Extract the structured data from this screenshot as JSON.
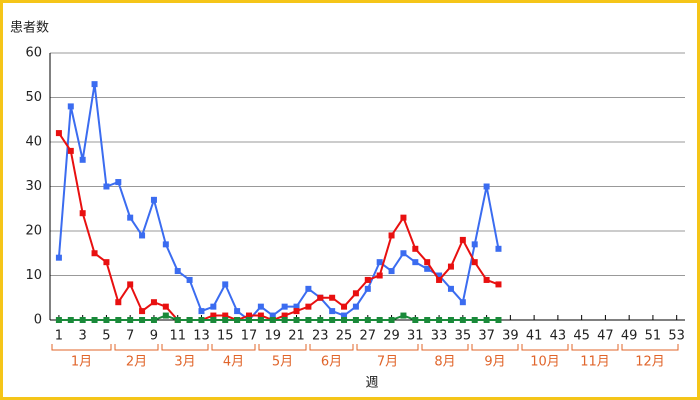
{
  "chart_data": {
    "type": "line",
    "y_label": "患者数",
    "x_label": "週",
    "x": [
      1,
      2,
      3,
      4,
      5,
      6,
      7,
      8,
      9,
      10,
      11,
      12,
      13,
      14,
      15,
      16,
      17,
      18,
      19,
      20,
      21,
      22,
      23,
      24,
      25,
      26,
      27,
      28,
      29,
      30,
      31,
      32,
      33,
      34,
      35,
      36,
      37,
      38
    ],
    "series": [
      {
        "color": "#3b6cf0",
        "values": [
          14,
          48,
          36,
          53,
          30,
          31,
          23,
          19,
          27,
          17,
          11,
          9,
          2,
          3,
          8,
          2,
          0,
          3,
          1,
          3,
          3,
          7,
          5,
          2,
          1,
          3,
          7,
          13,
          11,
          15,
          13,
          11.5,
          10,
          7,
          4,
          17,
          30,
          16
        ]
      },
      {
        "color": "#e81010",
        "values": [
          42,
          38,
          24,
          15,
          13,
          4,
          8,
          2,
          4,
          3,
          0,
          0,
          0,
          1,
          1,
          0,
          1,
          1,
          0,
          1,
          2,
          3,
          5,
          5,
          3,
          6,
          9,
          10,
          19,
          23,
          16,
          13,
          9,
          12,
          18,
          13,
          9,
          8
        ]
      },
      {
        "color": "#1a8a3a",
        "values": [
          0,
          0,
          0,
          0,
          0,
          0,
          0,
          0,
          0,
          1,
          0,
          0,
          0,
          0,
          0,
          0,
          0,
          0,
          0,
          0,
          0,
          0,
          0,
          0,
          0,
          0,
          0,
          0,
          0,
          1,
          0,
          0,
          0,
          0,
          0,
          0,
          0,
          0
        ]
      }
    ],
    "xlim": [
      0.25,
      53.7
    ],
    "xticks": [
      1,
      3,
      5,
      7,
      9,
      11,
      13,
      15,
      17,
      19,
      21,
      23,
      25,
      27,
      29,
      31,
      33,
      35,
      37,
      39,
      41,
      43,
      45,
      47,
      49,
      51,
      53
    ],
    "ylim": [
      0,
      60
    ],
    "yticks": [
      0,
      10,
      20,
      30,
      40,
      50,
      60
    ],
    "grid": true,
    "months": [
      "1月",
      "2月",
      "3月",
      "4月",
      "5月",
      "6月",
      "7月",
      "8月",
      "9月",
      "10月",
      "11月",
      "12月"
    ],
    "month_color": "#e0642a"
  }
}
